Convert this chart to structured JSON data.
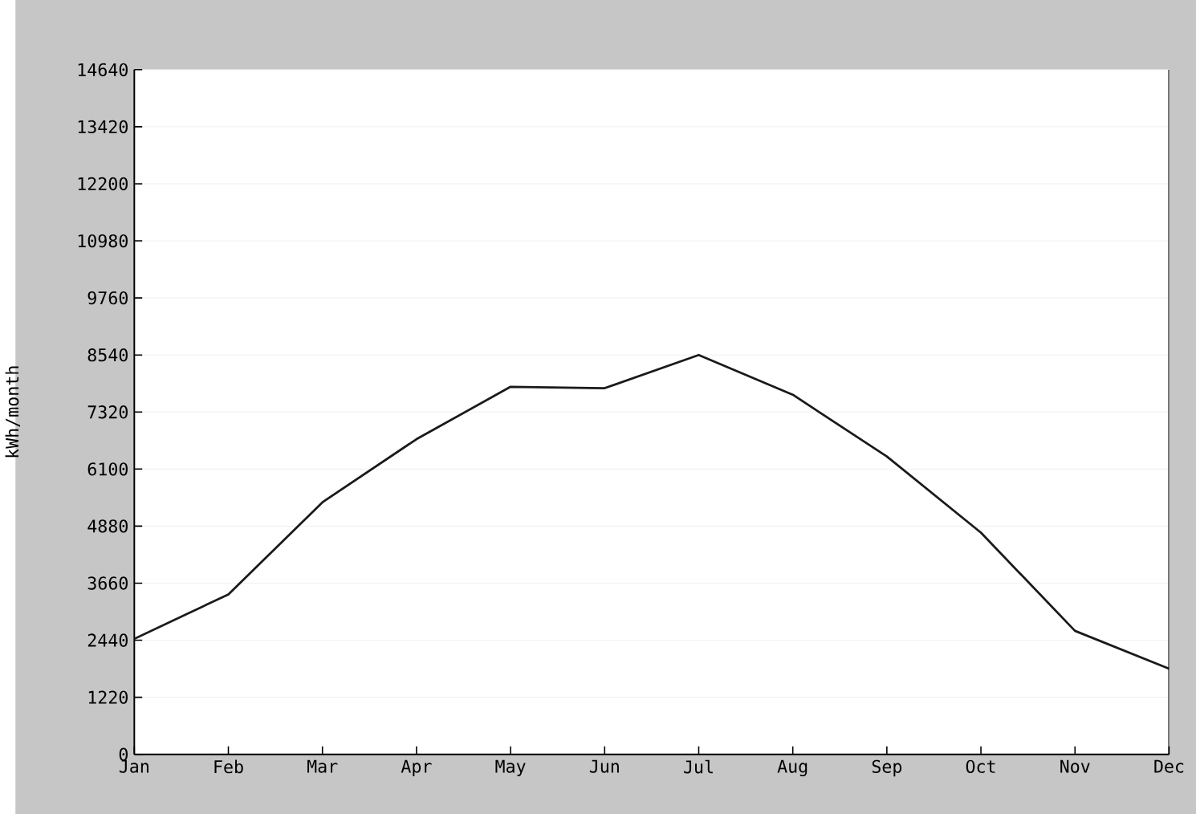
{
  "chart_data": {
    "type": "line",
    "ylabel": "kWh/month",
    "categories": [
      "Jan",
      "Feb",
      "Mar",
      "Apr",
      "May",
      "Jun",
      "Jul",
      "Aug",
      "Sep",
      "Oct",
      "Nov",
      "Dec"
    ],
    "series": [
      {
        "color": "#1a1a1a",
        "values": [
          2470,
          3420,
          5390,
          6740,
          7860,
          7830,
          8540,
          7690,
          6370,
          4740,
          2640,
          1830
        ]
      }
    ],
    "ylim": [
      0,
      14640
    ],
    "yticks": [
      0,
      1220,
      2440,
      3660,
      4880,
      6100,
      7320,
      8540,
      9760,
      10980,
      12200,
      13420,
      14640
    ],
    "grid": "y",
    "line_style": "solid",
    "marker": "none"
  }
}
